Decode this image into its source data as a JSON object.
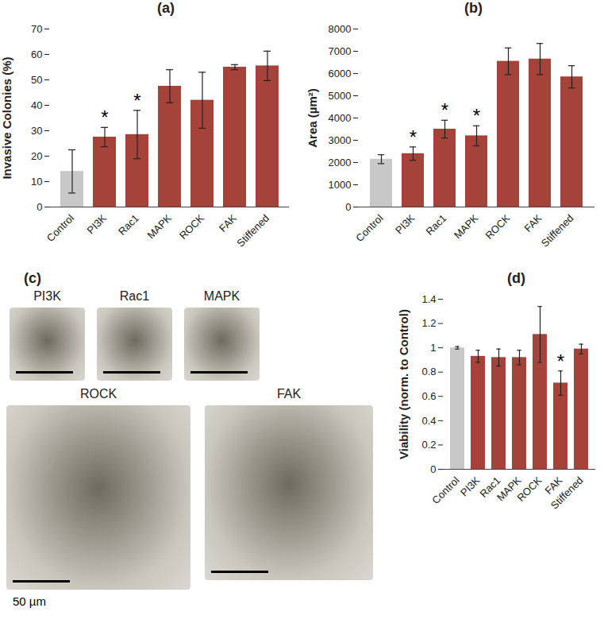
{
  "chart_data": [
    {
      "type": "bar",
      "panel": "(a)",
      "y_label": "Invasive Colonies (%)",
      "categories": [
        "Control",
        "PI3K",
        "Rac1",
        "MAPK",
        "ROCK",
        "FAK",
        "Stiffened"
      ],
      "values": [
        14,
        27.5,
        28.5,
        47.5,
        42,
        55,
        55.5
      ],
      "errors": [
        8.5,
        3.8,
        9.5,
        6.5,
        11,
        1,
        5.8
      ],
      "colors": [
        "#c8c8c8",
        "#a5423a",
        "#a5423a",
        "#a5423a",
        "#a5423a",
        "#a5423a",
        "#a5423a"
      ],
      "annotations": [
        {
          "category": "PI3K",
          "text": "*"
        },
        {
          "category": "Rac1",
          "text": "*"
        }
      ],
      "ylim": [
        0,
        70
      ],
      "yticks": [
        0,
        10,
        20,
        30,
        40,
        50,
        60,
        70
      ],
      "grid": false
    },
    {
      "type": "bar",
      "panel": "(b)",
      "y_label": "Area (µm²)",
      "categories": [
        "Control",
        "PI3K",
        "Rac1",
        "MAPK",
        "ROCK",
        "FAK",
        "Stiffened"
      ],
      "values": [
        2150,
        2400,
        3500,
        3200,
        6550,
        6650,
        5850
      ],
      "errors": [
        200,
        300,
        400,
        450,
        600,
        700,
        500
      ],
      "colors": [
        "#c8c8c8",
        "#a5423a",
        "#a5423a",
        "#a5423a",
        "#a5423a",
        "#a5423a",
        "#a5423a"
      ],
      "annotations": [
        {
          "category": "PI3K",
          "text": "*"
        },
        {
          "category": "Rac1",
          "text": "*"
        },
        {
          "category": "MAPK",
          "text": "*"
        }
      ],
      "ylim": [
        0,
        8000
      ],
      "yticks": [
        0,
        1000,
        2000,
        3000,
        4000,
        5000,
        6000,
        7000,
        8000
      ],
      "grid": false
    },
    {
      "type": "bar",
      "panel": "(d)",
      "y_label": "Viability (norm. to Control)",
      "categories": [
        "Control",
        "PI3K",
        "Rac1",
        "MAPK",
        "ROCK",
        "FAK",
        "Stiffened"
      ],
      "values": [
        1.0,
        0.93,
        0.92,
        0.92,
        1.11,
        0.71,
        0.99
      ],
      "errors": [
        0.01,
        0.05,
        0.07,
        0.06,
        0.23,
        0.1,
        0.04
      ],
      "colors": [
        "#c8c8c8",
        "#a5423a",
        "#a5423a",
        "#a5423a",
        "#a5423a",
        "#a5423a",
        "#a5423a"
      ],
      "annotations": [
        {
          "category": "FAK",
          "text": "*"
        }
      ],
      "ylim": [
        0,
        1.4
      ],
      "yticks": [
        0,
        0.2,
        0.4,
        0.6,
        0.8,
        1,
        1.2,
        1.4
      ],
      "grid": false
    }
  ],
  "images": {
    "panel": "(c)",
    "items": [
      {
        "label": "PI3K"
      },
      {
        "label": "Rac1"
      },
      {
        "label": "MAPK"
      },
      {
        "label": "ROCK"
      },
      {
        "label": "FAK"
      }
    ],
    "scale_bar": "50 µm"
  }
}
